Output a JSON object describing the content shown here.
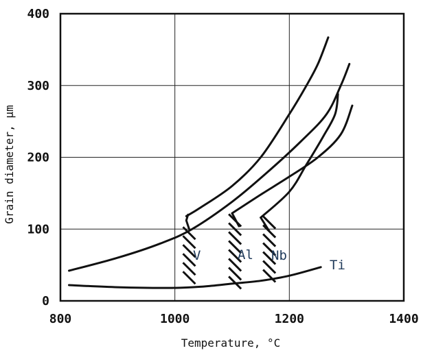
{
  "chart_data": {
    "type": "line",
    "xlabel": "Temperature, °C",
    "ylabel": "Grain diameter, µm",
    "xlim": [
      800,
      1400
    ],
    "ylim": [
      0,
      400
    ],
    "x_ticks": [
      "800",
      "1000",
      "1200",
      "1400"
    ],
    "y_ticks": [
      "0",
      "100",
      "200",
      "300",
      "400"
    ],
    "grid": true,
    "series": [
      {
        "name": "",
        "x": [
          815,
          900,
          975,
          1030,
          1100,
          1160,
          1220,
          1265,
          1290,
          1305
        ],
        "y": [
          42,
          60,
          80,
          100,
          138,
          178,
          222,
          260,
          300,
          330
        ]
      },
      {
        "name": "V",
        "x": [
          1020,
          1045,
          1100,
          1150,
          1200,
          1230,
          1250,
          1268
        ],
        "y": [
          118,
          130,
          160,
          200,
          260,
          300,
          330,
          367
        ]
      },
      {
        "name": "Al",
        "x": [
          1100,
          1150,
          1200,
          1250,
          1290,
          1310
        ],
        "y": [
          122,
          148,
          173,
          200,
          232,
          272
        ]
      },
      {
        "name": "Nb",
        "x": [
          1150,
          1200,
          1230,
          1260,
          1280,
          1285
        ],
        "y": [
          116,
          152,
          190,
          230,
          260,
          288
        ]
      },
      {
        "name": "Ti",
        "x": [
          815,
          900,
          995,
          1050,
          1100,
          1150,
          1200,
          1255
        ],
        "y": [
          22,
          19,
          18,
          20,
          24,
          28,
          35,
          47
        ]
      }
    ],
    "hatch_bands": [
      {
        "label": "V",
        "x": 1025,
        "y_range": [
          22,
          100
        ]
      },
      {
        "label": "Al",
        "x": 1105,
        "y_range": [
          22,
          118
        ]
      },
      {
        "label": "Nb",
        "x": 1165,
        "y_range": [
          30,
          115
        ]
      }
    ],
    "annotations": [
      "V",
      "Al",
      "Nb",
      "Ti"
    ]
  }
}
